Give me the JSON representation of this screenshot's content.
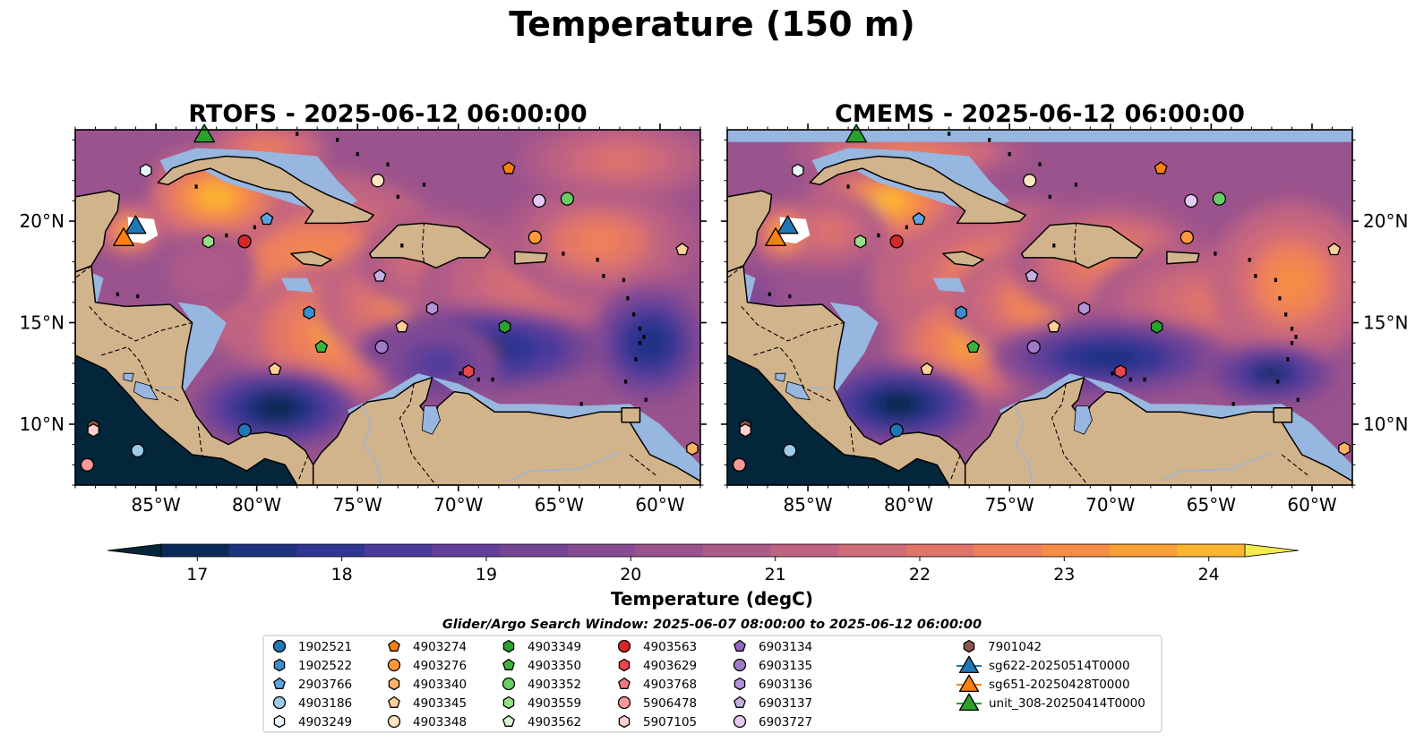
{
  "figure": {
    "title": "Temperature (150 m)",
    "search_window": "Glider/Argo Search Window: 2025-06-07 08:00:00 to 2025-06-12 06:00:00"
  },
  "panels": [
    {
      "title": "RTOFS - 2025-06-12 06:00:00"
    },
    {
      "title": "CMEMS - 2025-06-12 06:00:00"
    }
  ],
  "map_extent": {
    "lon_min": -89,
    "lon_max": -58,
    "lat_min": 7,
    "lat_max": 24.5
  },
  "lon_ticks": [
    {
      "value": -85,
      "label": "85°W"
    },
    {
      "value": -80,
      "label": "80°W"
    },
    {
      "value": -75,
      "label": "75°W"
    },
    {
      "value": -70,
      "label": "70°W"
    },
    {
      "value": -65,
      "label": "65°W"
    },
    {
      "value": -60,
      "label": "60°W"
    }
  ],
  "lat_ticks": [
    {
      "value": 20,
      "label": "20°N"
    },
    {
      "value": 15,
      "label": "15°N"
    },
    {
      "value": 10,
      "label": "10°N"
    }
  ],
  "colorbar": {
    "label": "Temperature (degC)",
    "min": 16.25,
    "max": 24.5,
    "step": 0.5,
    "ticks": [
      {
        "value": 17,
        "label": "17"
      },
      {
        "value": 18,
        "label": "18"
      },
      {
        "value": 19,
        "label": "19"
      },
      {
        "value": 20,
        "label": "20"
      },
      {
        "value": 21,
        "label": "21"
      },
      {
        "value": 22,
        "label": "22"
      },
      {
        "value": 23,
        "label": "23"
      },
      {
        "value": 24,
        "label": "24"
      }
    ],
    "colors": [
      "#03263a",
      "#0a2a5a",
      "#1e3380",
      "#2f3694",
      "#4a3a9c",
      "#623f9a",
      "#754595",
      "#874c92",
      "#9a538d",
      "#ad5a88",
      "#c06382",
      "#d06b78",
      "#e0746a",
      "#ee805a",
      "#f68d45",
      "#fa9e36",
      "#fdb52e",
      "#fbd13a",
      "#f3ea4e"
    ],
    "under_color": "#03263a",
    "over_color": "#f3ea4e"
  },
  "legend": [
    {
      "label": "1902521",
      "marker": "circle",
      "color": "#1f77b4"
    },
    {
      "label": "1902522",
      "marker": "hexagon",
      "color": "#3b8fd0"
    },
    {
      "label": "2903766",
      "marker": "pentagon",
      "color": "#5aa5e0"
    },
    {
      "label": "4903186",
      "marker": "circle",
      "color": "#9ecae9"
    },
    {
      "label": "4903249",
      "marker": "hexagon",
      "color": "#eaf4ff"
    },
    {
      "label": "4903274",
      "marker": "pentagon",
      "color": "#ff7f0e"
    },
    {
      "label": "4903276",
      "marker": "circle",
      "color": "#ff9a3c"
    },
    {
      "label": "4903340",
      "marker": "hexagon",
      "color": "#ffb266"
    },
    {
      "label": "4903345",
      "marker": "pentagon",
      "color": "#ffcf99"
    },
    {
      "label": "4903348",
      "marker": "circle",
      "color": "#ffe4c4"
    },
    {
      "label": "4903349",
      "marker": "hexagon",
      "color": "#2ca02c"
    },
    {
      "label": "4903350",
      "marker": "pentagon",
      "color": "#3cb43c"
    },
    {
      "label": "4903352",
      "marker": "circle",
      "color": "#6acc64"
    },
    {
      "label": "4903559",
      "marker": "hexagon",
      "color": "#98df8a"
    },
    {
      "label": "4903562",
      "marker": "pentagon",
      "color": "#dcf7d4"
    },
    {
      "label": "4903563",
      "marker": "circle",
      "color": "#d62728"
    },
    {
      "label": "4903629",
      "marker": "hexagon",
      "color": "#e8474a"
    },
    {
      "label": "4903768",
      "marker": "pentagon",
      "color": "#f07a7c"
    },
    {
      "label": "5906478",
      "marker": "circle",
      "color": "#ff9896"
    },
    {
      "label": "5907105",
      "marker": "hexagon",
      "color": "#ffd0ce"
    },
    {
      "label": "6903134",
      "marker": "pentagon",
      "color": "#9467bd"
    },
    {
      "label": "6903135",
      "marker": "circle",
      "color": "#a07cc8"
    },
    {
      "label": "6903136",
      "marker": "hexagon",
      "color": "#b593d8"
    },
    {
      "label": "6903137",
      "marker": "pentagon",
      "color": "#c5b0e0"
    },
    {
      "label": "6903727",
      "marker": "circle",
      "color": "#e2caf5"
    },
    {
      "label": "7901042",
      "marker": "hexagon",
      "color": "#8c564b"
    },
    {
      "label": "sg622-20250514T0000",
      "marker": "triangle",
      "color": "#1f77b4"
    },
    {
      "label": "sg651-20250428T0000",
      "marker": "triangle",
      "color": "#ff7f0e"
    },
    {
      "label": "unit_308-20250414T0000",
      "marker": "triangle",
      "color": "#2ca02c"
    }
  ],
  "platforms": [
    {
      "id": "4903249",
      "lon": -85.5,
      "lat": 22.5
    },
    {
      "id": "4903348",
      "lon": -74.0,
      "lat": 22.0
    },
    {
      "id": "4903274",
      "lon": -67.5,
      "lat": 22.6
    },
    {
      "id": "6903727",
      "lon": -66.0,
      "lat": 21.0
    },
    {
      "id": "4903352",
      "lon": -64.6,
      "lat": 21.1
    },
    {
      "id": "2903766",
      "lon": -79.5,
      "lat": 20.1
    },
    {
      "id": "4903559",
      "lon": -82.4,
      "lat": 19.0
    },
    {
      "id": "4903563",
      "lon": -80.6,
      "lat": 19.0
    },
    {
      "id": "4903276",
      "lon": -66.2,
      "lat": 19.2
    },
    {
      "id": "4903345",
      "lon": -58.9,
      "lat": 18.6
    },
    {
      "id": "6903137",
      "lon": -73.9,
      "lat": 17.3
    },
    {
      "id": "1902522",
      "lon": -77.4,
      "lat": 15.5
    },
    {
      "id": "6903136",
      "lon": -71.3,
      "lat": 15.7
    },
    {
      "id": "4903345",
      "lon": -72.8,
      "lat": 14.8
    },
    {
      "id": "4903349",
      "lon": -67.7,
      "lat": 14.8
    },
    {
      "id": "4903350",
      "lon": -76.8,
      "lat": 13.8
    },
    {
      "id": "6903135",
      "lon": -73.8,
      "lat": 13.8
    },
    {
      "id": "4903345",
      "lon": -79.1,
      "lat": 12.7
    },
    {
      "id": "4903629",
      "lon": -69.5,
      "lat": 12.6
    },
    {
      "id": "1902521",
      "lon": -80.6,
      "lat": 9.7
    },
    {
      "id": "7901042",
      "lon": -88.1,
      "lat": 9.9
    },
    {
      "id": "5907105",
      "lon": -88.1,
      "lat": 9.7
    },
    {
      "id": "4903186",
      "lon": -85.9,
      "lat": 8.7
    },
    {
      "id": "5906478",
      "lon": -88.4,
      "lat": 8.0
    },
    {
      "id": "4903340",
      "lon": -58.4,
      "lat": 8.8
    }
  ],
  "gliders": [
    {
      "id": "sg622-20250514T0000",
      "lon": -86.0,
      "lat": 19.8
    },
    {
      "id": "sg651-20250428T0000",
      "lon": -86.6,
      "lat": 19.2
    },
    {
      "id": "unit_308-20250414T0000",
      "lon": -82.6,
      "lat": 24.3
    }
  ]
}
